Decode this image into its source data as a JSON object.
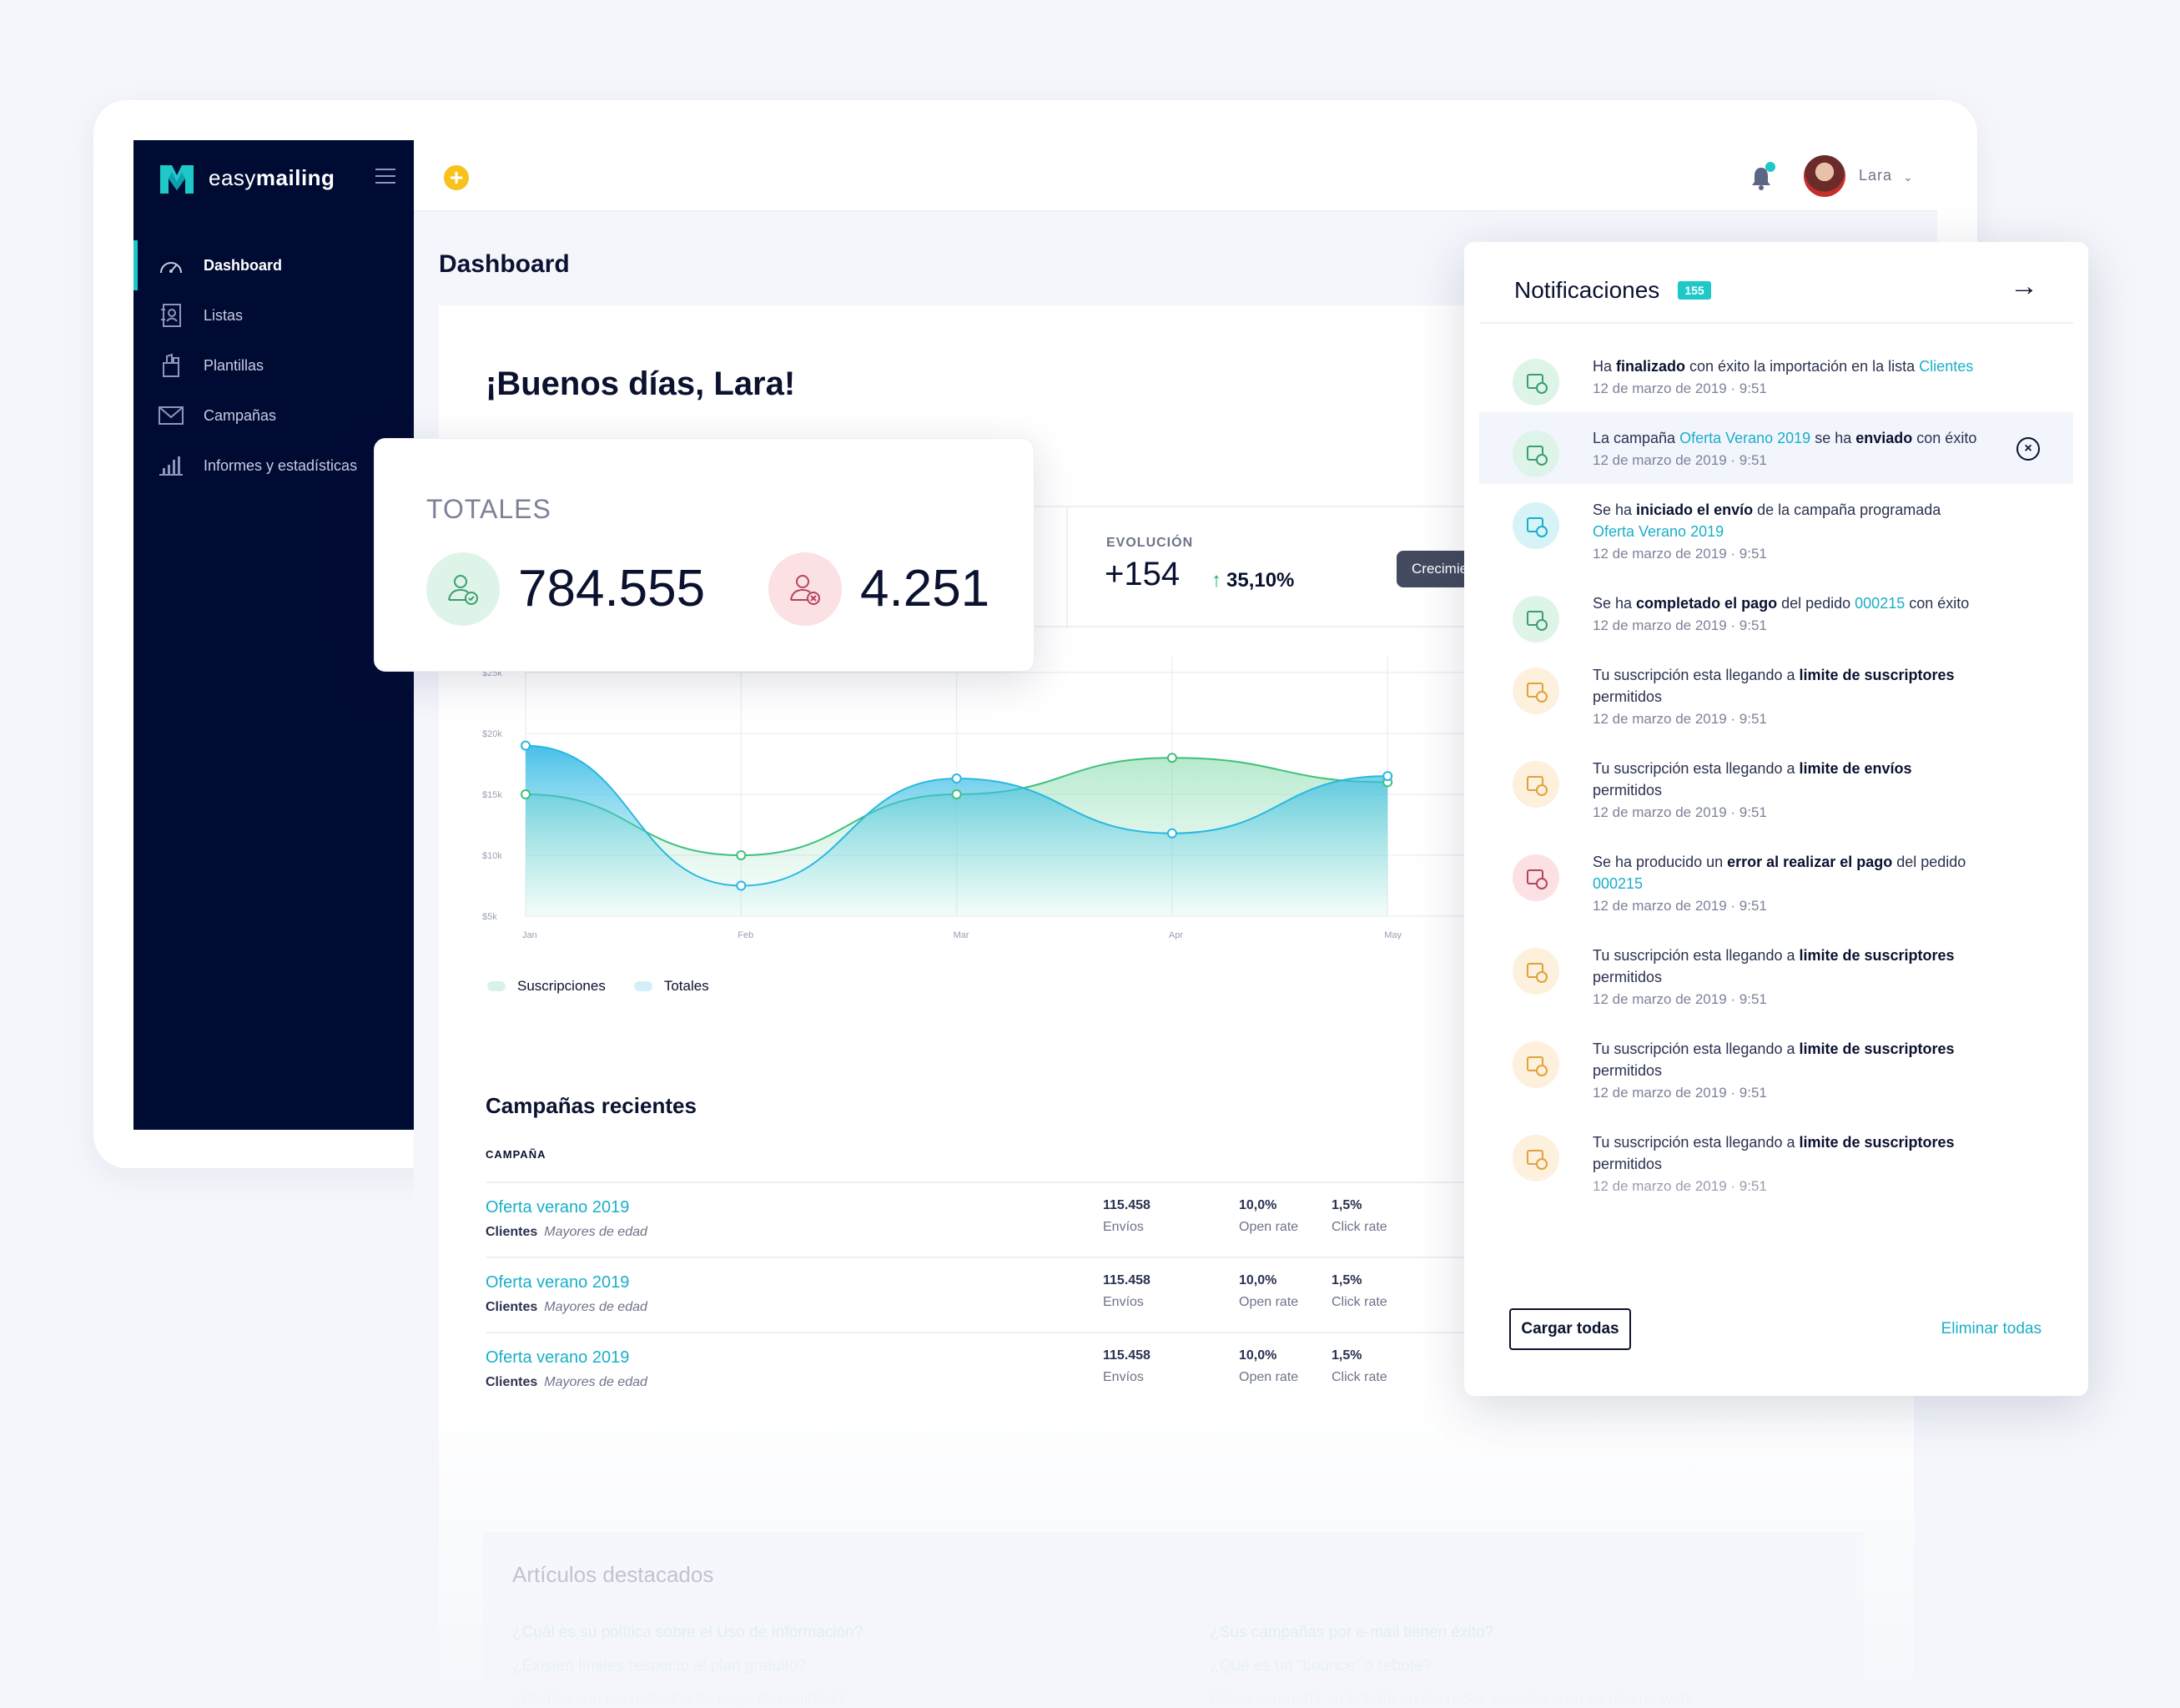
{
  "app": {
    "brand_prefix": "easy",
    "brand_suffix": "mailing",
    "brand_color": "#1ec8c8"
  },
  "sidebar": {
    "items": [
      {
        "label": "Dashboard",
        "icon": "speedometer-icon",
        "active": true
      },
      {
        "label": "Listas",
        "icon": "contacts-book-icon"
      },
      {
        "label": "Plantillas",
        "icon": "template-icon"
      },
      {
        "label": "Campañas",
        "icon": "envelope-icon"
      },
      {
        "label": "Informes y estadísticas",
        "icon": "bar-chart-icon"
      }
    ]
  },
  "topbar": {
    "add_icon": "+",
    "user_name": "Lara",
    "chevron": "⌄"
  },
  "page": {
    "title": "Dashboard",
    "greeting": "¡Buenos días, Lara!"
  },
  "totales": {
    "title": "TOTALES",
    "subscribed": "784.555",
    "unsubscribed": "4.251"
  },
  "evolution": {
    "label": "EVOLUCIÓN",
    "value": "+154",
    "arrow": "↑",
    "percent": "35,10%",
    "button": "Crecimiento"
  },
  "chart_data": {
    "type": "area",
    "categories": [
      "Jan",
      "Feb",
      "Mar",
      "Apr",
      "May"
    ],
    "y_ticks": [
      "$25k",
      "$20k",
      "$15k",
      "$10k",
      "$5k"
    ],
    "ylim": [
      5000,
      25000
    ],
    "series": [
      {
        "name": "Suscripciones",
        "color": "#3ec07a",
        "values": [
          15000,
          10000,
          15000,
          18000,
          16000
        ]
      },
      {
        "name": "Totales",
        "color": "#2ab8e0",
        "values": [
          19000,
          7500,
          16300,
          11800,
          16500
        ]
      }
    ],
    "grid": true,
    "legend": "bottom-left"
  },
  "legend": {
    "subs": "Suscripciones",
    "totals": "Totales"
  },
  "recent": {
    "title": "Campañas recientes",
    "column": "CAMPAÑA",
    "sort_icon": "↑",
    "rows": [
      {
        "name": "Oferta verano 2019",
        "list": "Clientes",
        "segment": "Mayores de edad",
        "envios": "115.458",
        "envios_l": "Envíos",
        "open": "10,0%",
        "open_l": "Open rate",
        "click": "1,5%",
        "click_l": "Click rate"
      },
      {
        "name": "Oferta verano 2019",
        "list": "Clientes",
        "segment": "Mayores de edad",
        "envios": "115.458",
        "envios_l": "Envíos",
        "open": "10,0%",
        "open_l": "Open rate",
        "click": "1,5%",
        "click_l": "Click rate"
      },
      {
        "name": "Oferta verano 2019",
        "list": "Clientes",
        "segment": "Mayores de edad",
        "envios": "115.458",
        "envios_l": "Envíos",
        "open": "10,0%",
        "open_l": "Open rate",
        "click": "1,5%",
        "click_l": "Click rate"
      }
    ]
  },
  "featured": {
    "title": "Artículos destacados",
    "left": [
      "¿Cuál es su política sobre el Uso de Información?",
      "¿Existen límites respecto al plan gratuito?",
      "¿Cuáles son los métodos de pago disponibles?"
    ],
    "right": [
      "¿Sus campañas por e-mail tienen éxito?",
      "¿Qué es un \"bounce\" o rebote?",
      "Cómo compartir su boletín en las redes sociales o en su página web"
    ]
  },
  "notifications": {
    "title": "Notificaciones",
    "count": "155",
    "close_icon": "→",
    "load_all": "Cargar todas",
    "delete_all": "Eliminar todas",
    "dismiss": "×",
    "date": "12 de marzo de 2019 · 9:51",
    "items": [
      {
        "kind": "success",
        "icon": "database-check-icon",
        "parts": [
          [
            "",
            "Ha "
          ],
          [
            "b",
            "finalizado"
          ],
          [
            "",
            " con éxito la importación en la lista "
          ],
          [
            "lk",
            "Clientes"
          ]
        ]
      },
      {
        "kind": "success",
        "icon": "mail-check-icon",
        "highlight": true,
        "parts": [
          [
            "",
            "La campaña "
          ],
          [
            "lk",
            "Oferta Verano 2019"
          ],
          [
            "",
            " se ha "
          ],
          [
            "b",
            "enviado"
          ],
          [
            "",
            " con éxito"
          ]
        ]
      },
      {
        "kind": "info",
        "icon": "stopwatch-icon",
        "parts": [
          [
            "",
            "Se ha "
          ],
          [
            "b",
            "iniciado el envío"
          ],
          [
            "",
            " de la campaña programada "
          ],
          [
            "lk",
            "Oferta Verano 2019"
          ]
        ]
      },
      {
        "kind": "success",
        "icon": "card-check-icon",
        "parts": [
          [
            "",
            "Se ha "
          ],
          [
            "b",
            "completado el pago"
          ],
          [
            "",
            " del pedido "
          ],
          [
            "lk",
            "000215"
          ],
          [
            "",
            " con éxito"
          ]
        ]
      },
      {
        "kind": "warning",
        "icon": "user-warning-icon",
        "parts": [
          [
            "",
            "Tu suscripción esta llegando a "
          ],
          [
            "b",
            "limite de suscriptores"
          ],
          [
            "",
            " permitidos"
          ]
        ]
      },
      {
        "kind": "warning",
        "icon": "mail-warning-icon",
        "parts": [
          [
            "",
            "Tu suscripción esta llegando a "
          ],
          [
            "b",
            "limite de envíos"
          ],
          [
            "",
            " permitidos"
          ]
        ]
      },
      {
        "kind": "error",
        "icon": "card-error-icon",
        "parts": [
          [
            "",
            "Se ha producido un "
          ],
          [
            "b",
            "error al realizar el pago"
          ],
          [
            "",
            " del pedido "
          ],
          [
            "lk",
            "000215"
          ]
        ]
      },
      {
        "kind": "warning",
        "icon": "user-warning-icon",
        "parts": [
          [
            "",
            "Tu suscripción esta llegando a "
          ],
          [
            "b",
            "limite de suscriptores"
          ],
          [
            "",
            " permitidos"
          ]
        ]
      },
      {
        "kind": "warning",
        "icon": "user-warning-icon",
        "parts": [
          [
            "",
            "Tu suscripción esta llegando a "
          ],
          [
            "b",
            "limite de suscriptores"
          ],
          [
            "",
            " permitidos"
          ]
        ]
      },
      {
        "kind": "warning",
        "icon": "user-warning-icon",
        "parts": [
          [
            "",
            "Tu suscripción esta llegando a "
          ],
          [
            "b",
            "limite de suscriptores"
          ],
          [
            "",
            " permitidos"
          ]
        ]
      }
    ]
  }
}
